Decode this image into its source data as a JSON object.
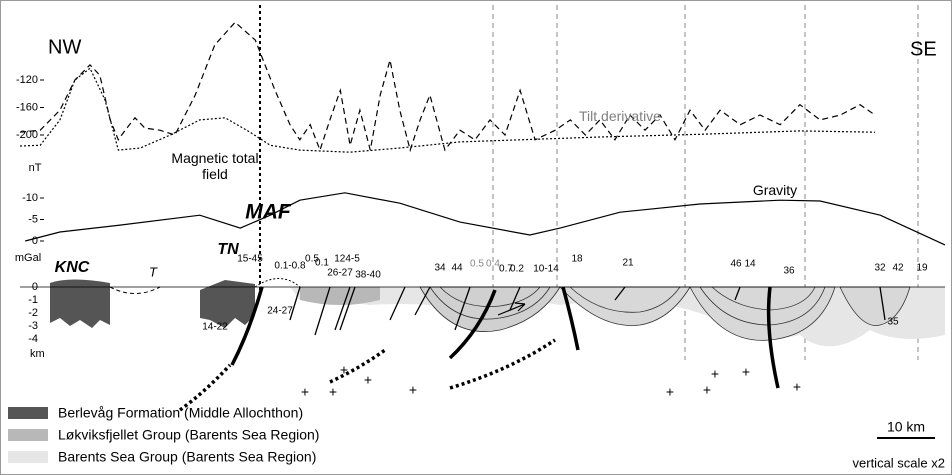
{
  "chart_data": [
    {
      "type": "line",
      "y_label": "nT",
      "xlim": [
        0,
        160
      ],
      "ylim": [
        -230,
        -25
      ],
      "yticks": [
        -120,
        -160,
        -200
      ],
      "series": [
        {
          "name": "Tilt derivative",
          "color": "#000000",
          "label_color": "#808080",
          "style": "dashed",
          "x": [
            0,
            3.5,
            6.9,
            9.5,
            12.1,
            13.8,
            15.6,
            17,
            18.2,
            19.9,
            21.6,
            24.2,
            26.8,
            30.3,
            33.7,
            37.2,
            40.7,
            44.1,
            46.7,
            48.4,
            50.2,
            51.9,
            53.6,
            55.4,
            57.1,
            58.8,
            60.6,
            62.3,
            64,
            65.7,
            67.5,
            69.2,
            70.9,
            73.5,
            76.1,
            78.7,
            81.3,
            83.9,
            86.5,
            89.1,
            92.6,
            95.2,
            97.8,
            100.3,
            102.9,
            105.5,
            108.1,
            110.7,
            113.3,
            115.9,
            118.5,
            121.1,
            124.6,
            128,
            131.5,
            134.9,
            138.4,
            141.9,
            145.3,
            147.9
          ],
          "values": [
            -196,
            -193,
            -164,
            -120,
            -98,
            -113,
            -178,
            -207,
            -193,
            -175,
            -190,
            -193,
            -200,
            -142,
            -69,
            -36,
            -62,
            -135,
            -185,
            -207,
            -185,
            -222,
            -178,
            -135,
            -215,
            -164,
            -222,
            -142,
            -91,
            -164,
            -222,
            -178,
            -142,
            -222,
            -193,
            -207,
            -178,
            -200,
            -135,
            -207,
            -193,
            -178,
            -200,
            -178,
            -207,
            -171,
            -193,
            -171,
            -207,
            -164,
            -193,
            -164,
            -185,
            -171,
            -185,
            -156,
            -178,
            -171,
            -156,
            -171
          ]
        },
        {
          "name": "Magnetic total field",
          "color": "#000000",
          "label_color": "#000000",
          "style": "dotted",
          "x": [
            0,
            3.5,
            6.9,
            9.5,
            12.1,
            14.7,
            17,
            20.8,
            26,
            31.1,
            35.5,
            39.8,
            43.3,
            48.4,
            57.1,
            65.7,
            76.1,
            86.5,
            100.3,
            117.6,
            134.9,
            147.9
          ],
          "values": [
            -216,
            -215,
            -178,
            -120,
            -103,
            -149,
            -222,
            -219,
            -200,
            -178,
            -175,
            -196,
            -215,
            -222,
            -225,
            -219,
            -210,
            -207,
            -203,
            -199,
            -194,
            -196
          ]
        }
      ]
    },
    {
      "type": "line",
      "y_label": "mGal",
      "xlim": [
        0,
        160
      ],
      "ylim": [
        2,
        -12
      ],
      "yticks": [
        -10,
        -5,
        0
      ],
      "series": [
        {
          "name": "Gravity",
          "color": "#000000",
          "label_color": "#000000",
          "style": "solid",
          "x": [
            0.9,
            6.9,
            17.3,
            31.1,
            38.1,
            43.3,
            48.4,
            56.2,
            65.7,
            76.1,
            88.2,
            93.4,
            103.8,
            117.6,
            131.5,
            138.4,
            148.8,
            160
          ],
          "values": [
            0,
            -2.1,
            -3.7,
            -6,
            -3,
            -6,
            -9.5,
            -11.2,
            -8.8,
            -4.4,
            -1.4,
            -3,
            -6.7,
            -8.6,
            -9.5,
            -9.3,
            -6,
            0.9
          ]
        }
      ]
    }
  ],
  "section": {
    "ends": [
      "NW",
      "SE"
    ],
    "depth_label": "km",
    "depth_ticks": [
      "0",
      "-1",
      "-2",
      "-3",
      "-4"
    ],
    "labels": [
      "KNC",
      "T",
      "TN",
      "MAF",
      "15-45",
      "0.1-0.8",
      "0.5",
      "0.1",
      "124-5",
      "26-27",
      "38-40",
      "24-27",
      "14-22",
      "34",
      "44",
      "0.5",
      "0.4",
      "0.7",
      "0.2",
      "10-14",
      "18",
      "21",
      "46",
      "14",
      "36",
      "32",
      "42",
      "19",
      "35"
    ]
  },
  "legend": [
    "Berlevåg Formation (Middle Allochthon)",
    "Løkviksfjellet Group (Barents Sea Region)",
    "Barents Sea Group (Barents Sea Region)"
  ],
  "scale_bar": "10 km",
  "vertical_scale": "vertical scale x2"
}
